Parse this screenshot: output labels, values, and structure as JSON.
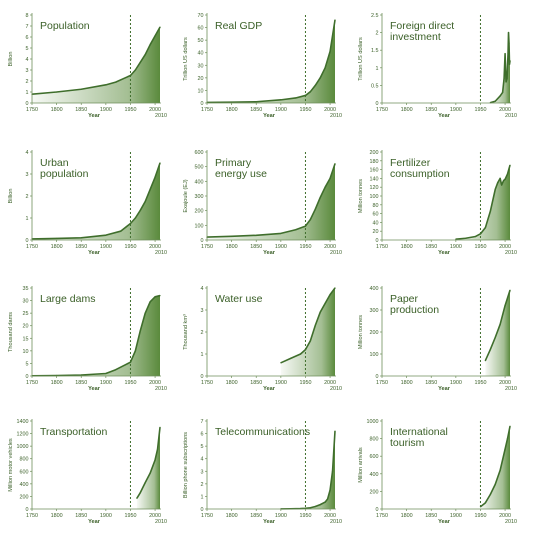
{
  "colors": {
    "line": "#3f6e2c",
    "fill": "#5a8a3c",
    "axis": "#6e8e5a",
    "title": "#3a5f27",
    "label": "#3a5f27"
  },
  "chart_data": [
    {
      "type": "area",
      "title": "Population",
      "ylabel": "Billion",
      "xlabel": "Year",
      "xlim": [
        1750,
        2010
      ],
      "ylim": [
        0,
        8
      ],
      "yticks": [
        "0",
        "1",
        "2",
        "3",
        "4",
        "5",
        "6",
        "7",
        "8"
      ],
      "xticks": [
        "1750",
        "1800",
        "1850",
        "1900",
        "1950",
        "2000"
      ],
      "xtick_end": "2010",
      "x": [
        1750,
        1800,
        1850,
        1900,
        1920,
        1940,
        1950,
        1960,
        1970,
        1980,
        1990,
        2000,
        2010
      ],
      "y": [
        0.8,
        1.0,
        1.25,
        1.65,
        1.9,
        2.3,
        2.5,
        3.0,
        3.7,
        4.4,
        5.3,
        6.1,
        6.9
      ]
    },
    {
      "type": "area",
      "title": "Real GDP",
      "ylabel": "Trillion US dollars",
      "xlabel": "Year",
      "xlim": [
        1750,
        2010
      ],
      "ylim": [
        0,
        70
      ],
      "yticks": [
        "0",
        "10",
        "20",
        "30",
        "40",
        "50",
        "60",
        "70"
      ],
      "xticks": [
        "1750",
        "1800",
        "1850",
        "1900",
        "1950",
        "2000"
      ],
      "xtick_end": "2010",
      "x": [
        1750,
        1800,
        1850,
        1900,
        1930,
        1950,
        1960,
        1970,
        1980,
        1990,
        2000,
        2010
      ],
      "y": [
        0.5,
        0.7,
        1.0,
        2.5,
        4,
        6,
        9,
        14,
        20,
        28,
        41,
        66
      ]
    },
    {
      "type": "area",
      "title": "Foreign direct investment",
      "ylabel": "Trillion US dollars",
      "xlabel": "Year",
      "xlim": [
        1750,
        2010
      ],
      "ylim": [
        0,
        2.5
      ],
      "yticks": [
        "0",
        "0.5",
        "1",
        "1.5",
        "2",
        "2.5"
      ],
      "xticks": [
        "1750",
        "1800",
        "1850",
        "1900",
        "1950",
        "2000"
      ],
      "xtick_end": "2010",
      "x": [
        1970,
        1980,
        1990,
        1995,
        1998,
        2000,
        2002,
        2004,
        2006,
        2007,
        2008,
        2009,
        2010
      ],
      "y": [
        0.01,
        0.05,
        0.2,
        0.3,
        0.7,
        1.4,
        0.6,
        0.7,
        1.4,
        2.0,
        1.7,
        1.1,
        1.2
      ]
    },
    {
      "type": "area",
      "title": "Urban population",
      "ylabel": "Billion",
      "xlabel": "Year",
      "xlim": [
        1750,
        2010
      ],
      "ylim": [
        0,
        4
      ],
      "yticks": [
        "0",
        "1",
        "2",
        "3",
        "4"
      ],
      "xticks": [
        "1750",
        "1800",
        "1850",
        "1900",
        "1950",
        "2000"
      ],
      "xtick_end": "2010",
      "x": [
        1750,
        1800,
        1850,
        1900,
        1930,
        1950,
        1960,
        1970,
        1980,
        1990,
        2000,
        2010
      ],
      "y": [
        0.05,
        0.07,
        0.1,
        0.22,
        0.4,
        0.75,
        1.0,
        1.35,
        1.75,
        2.3,
        2.85,
        3.5
      ]
    },
    {
      "type": "area",
      "title": "Primary energy use",
      "ylabel": "Exajoule (EJ)",
      "xlabel": "Year",
      "xlim": [
        1750,
        2010
      ],
      "ylim": [
        0,
        600
      ],
      "yticks": [
        "0",
        "100",
        "200",
        "300",
        "400",
        "500",
        "600"
      ],
      "xticks": [
        "1750",
        "1800",
        "1850",
        "1900",
        "1950",
        "2000"
      ],
      "xtick_end": "2010",
      "x": [
        1750,
        1800,
        1850,
        1900,
        1930,
        1950,
        1960,
        1970,
        1980,
        1990,
        2000,
        2010
      ],
      "y": [
        20,
        25,
        32,
        45,
        70,
        95,
        140,
        210,
        290,
        360,
        420,
        520
      ]
    },
    {
      "type": "area",
      "title": "Fertilizer consumption",
      "ylabel": "Million tonnes",
      "xlabel": "Year",
      "xlim": [
        1750,
        2010
      ],
      "ylim": [
        0,
        200
      ],
      "yticks": [
        "0",
        "20",
        "40",
        "60",
        "80",
        "100",
        "120",
        "140",
        "160",
        "180",
        "200"
      ],
      "xticks": [
        "1750",
        "1800",
        "1850",
        "1900",
        "1950",
        "2000"
      ],
      "xtick_end": "2010",
      "x": [
        1900,
        1920,
        1940,
        1950,
        1960,
        1970,
        1980,
        1985,
        1990,
        1993,
        1997,
        2000,
        2005,
        2010
      ],
      "y": [
        2,
        4,
        8,
        14,
        28,
        65,
        115,
        130,
        140,
        125,
        135,
        138,
        150,
        170
      ]
    },
    {
      "type": "area",
      "title": "Large dams",
      "ylabel": "Thousand dams",
      "xlabel": "Year",
      "xlim": [
        1750,
        2010
      ],
      "ylim": [
        0,
        35
      ],
      "yticks": [
        "0",
        "5",
        "10",
        "15",
        "20",
        "25",
        "30",
        "35"
      ],
      "xticks": [
        "1750",
        "1800",
        "1850",
        "1900",
        "1950",
        "2000"
      ],
      "xtick_end": "2010",
      "x": [
        1750,
        1800,
        1850,
        1900,
        1920,
        1940,
        1950,
        1960,
        1970,
        1980,
        1990,
        2000,
        2010
      ],
      "y": [
        0.1,
        0.2,
        0.4,
        1.0,
        2.5,
        4.5,
        5.5,
        10,
        18,
        25,
        29.5,
        31.5,
        32
      ]
    },
    {
      "type": "area",
      "title": "Water use",
      "ylabel": "Thousand km³",
      "xlabel": "Year",
      "xlim": [
        1750,
        2010
      ],
      "ylim": [
        0,
        4
      ],
      "yticks": [
        "0",
        "1",
        "2",
        "3",
        "4"
      ],
      "xticks": [
        "1750",
        "1800",
        "1850",
        "1900",
        "1950",
        "2000"
      ],
      "xtick_end": "2010",
      "x": [
        1900,
        1920,
        1940,
        1950,
        1960,
        1970,
        1980,
        1990,
        2000,
        2010
      ],
      "y": [
        0.6,
        0.8,
        1.0,
        1.2,
        1.6,
        2.3,
        2.9,
        3.3,
        3.7,
        4.0
      ]
    },
    {
      "type": "area",
      "title": "Paper production",
      "ylabel": "Million tonnes",
      "xlabel": "Year",
      "xlim": [
        1750,
        2010
      ],
      "ylim": [
        0,
        400
      ],
      "yticks": [
        "0",
        "100",
        "200",
        "300",
        "400"
      ],
      "xticks": [
        "1750",
        "1800",
        "1850",
        "1900",
        "1950",
        "2000"
      ],
      "xtick_end": "2010",
      "x": [
        1960,
        1970,
        1980,
        1990,
        2000,
        2010
      ],
      "y": [
        70,
        120,
        175,
        235,
        320,
        390
      ]
    },
    {
      "type": "area",
      "title": "Transportation",
      "ylabel": "Million motor vehicles",
      "xlabel": "Year",
      "xlim": [
        1750,
        2010
      ],
      "ylim": [
        0,
        1400
      ],
      "yticks": [
        "0",
        "200",
        "400",
        "600",
        "800",
        "1000",
        "1200",
        "1400"
      ],
      "xticks": [
        "1750",
        "1800",
        "1850",
        "1900",
        "1950",
        "2000"
      ],
      "xtick_end": "2010",
      "x": [
        1963,
        1970,
        1980,
        1990,
        2000,
        2005,
        2010
      ],
      "y": [
        170,
        260,
        420,
        570,
        780,
        950,
        1300
      ]
    },
    {
      "type": "area",
      "title": "Telecommunications",
      "ylabel": "Billion phone subscriptions",
      "xlabel": "Year",
      "xlim": [
        1750,
        2010
      ],
      "ylim": [
        0,
        7
      ],
      "yticks": [
        "0",
        "1",
        "2",
        "3",
        "4",
        "5",
        "6",
        "7"
      ],
      "xticks": [
        "1750",
        "1800",
        "1850",
        "1900",
        "1950",
        "2000"
      ],
      "xtick_end": "2010",
      "x": [
        1900,
        1920,
        1940,
        1950,
        1960,
        1970,
        1980,
        1990,
        1995,
        2000,
        2005,
        2010
      ],
      "y": [
        0.01,
        0.02,
        0.04,
        0.06,
        0.1,
        0.2,
        0.35,
        0.55,
        0.8,
        1.5,
        3.0,
        6.2
      ]
    },
    {
      "type": "area",
      "title": "International tourism",
      "ylabel": "Million arrivals",
      "xlabel": "Year",
      "xlim": [
        1750,
        2010
      ],
      "ylim": [
        0,
        1000
      ],
      "yticks": [
        "0",
        "200",
        "400",
        "600",
        "800",
        "1000"
      ],
      "xticks": [
        "1750",
        "1800",
        "1850",
        "1900",
        "1950",
        "2000"
      ],
      "xtick_end": "2010",
      "x": [
        1950,
        1960,
        1970,
        1980,
        1990,
        2000,
        2005,
        2010
      ],
      "y": [
        25,
        70,
        165,
        280,
        440,
        680,
        800,
        940
      ]
    }
  ]
}
